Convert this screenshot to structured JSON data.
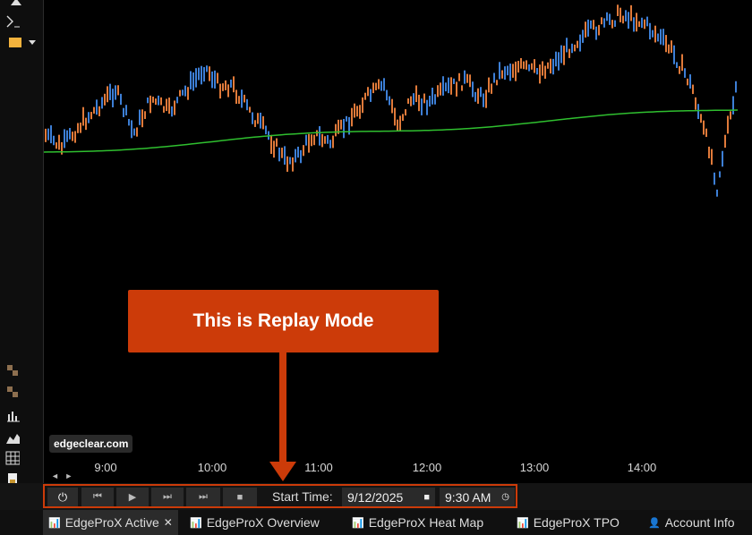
{
  "chart": {
    "x_ticks": [
      "9:00",
      "10:00",
      "11:00",
      "12:00",
      "13:00",
      "14:00"
    ],
    "watermark": "edgeclear.com",
    "scroll_arrows": "◄ ►",
    "colors": {
      "up": "#3d7fd6",
      "down": "#e07a3a",
      "ma": "#2fbf2f",
      "background": "#000000"
    }
  },
  "callout": {
    "text": "This is Replay Mode"
  },
  "replay": {
    "power_icon": "⏻",
    "first_icon": "⏮",
    "play_icon": "▶",
    "step_icon": "⏭",
    "last_icon": "⏭",
    "stop_icon": "■",
    "start_time_label": "Start Time:",
    "date_value": "9/12/2025",
    "date_icon": "■",
    "time_value": "9:30 AM",
    "time_icon": "◷"
  },
  "tabs": [
    {
      "label": "EdgeProX Active",
      "icon": "📊",
      "close": "✕"
    },
    {
      "label": "EdgeProX Overview",
      "icon": "📊"
    },
    {
      "label": "EdgeProX Heat Map",
      "icon": "📊"
    },
    {
      "label": "EdgeProX TPO",
      "icon": "📊"
    },
    {
      "label": "Account Info",
      "icon": "👤"
    }
  ]
}
